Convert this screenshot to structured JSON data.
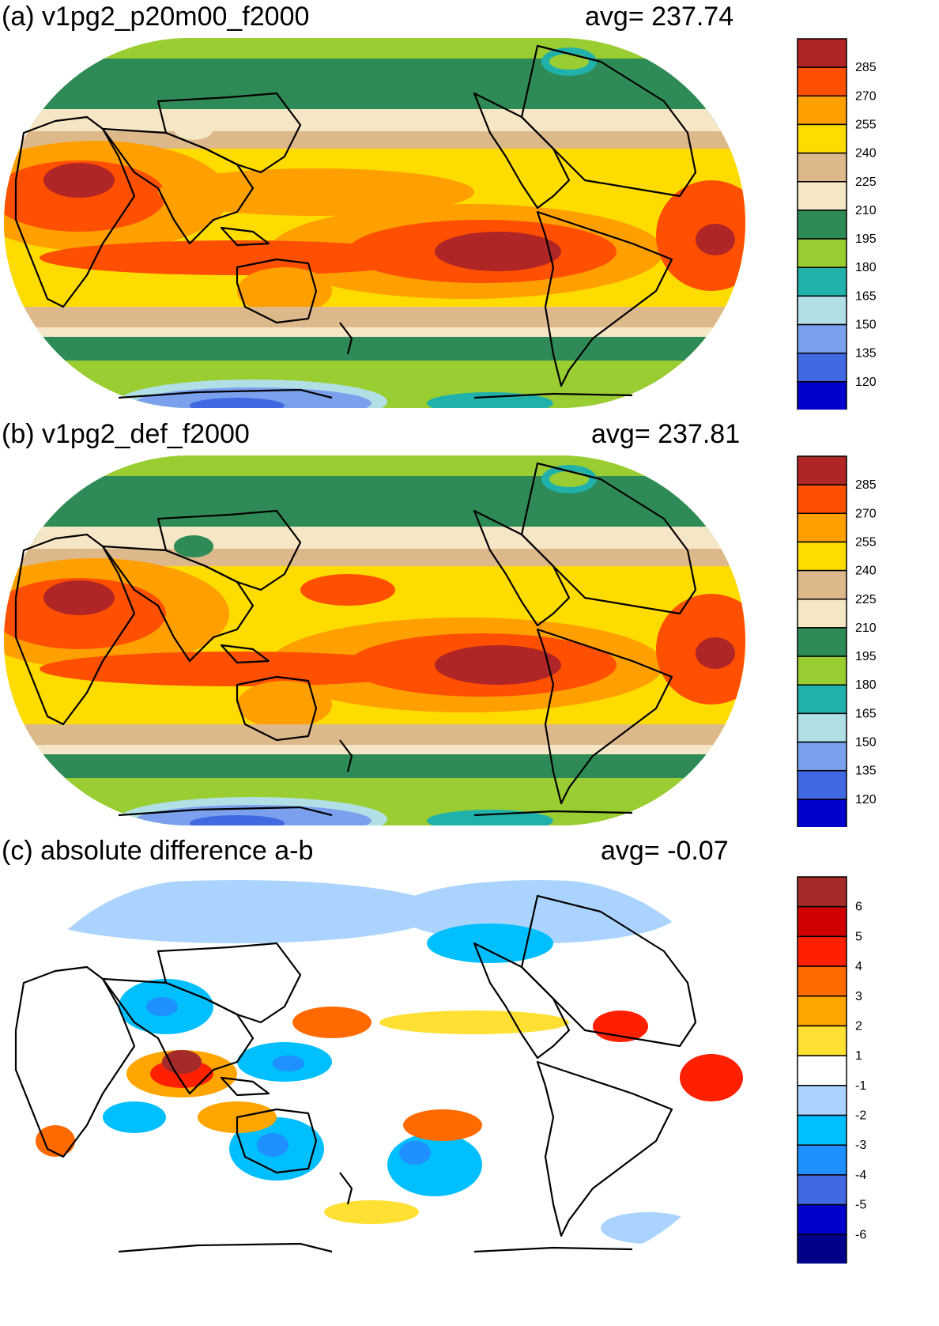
{
  "panels": [
    {
      "id": "a",
      "title": "(a) v1pg2_p20m00_f2000",
      "avg_label": "avg=  237.74",
      "kind": "field",
      "colorbar": {
        "labels": [
          "285",
          "270",
          "255",
          "240",
          "225",
          "210",
          "195",
          "180",
          "165",
          "150",
          "135",
          "120"
        ],
        "colors": [
          "#b02525",
          "#ff4f00",
          "#ff9f00",
          "#ffdc00",
          "#ddb88a",
          "#f5e6c6",
          "#2e8b57",
          "#9acd32",
          "#20b2aa",
          "#b0e0e6",
          "#7ba1ee",
          "#4169e1",
          "#0000cd"
        ]
      }
    },
    {
      "id": "b",
      "title": "(b) v1pg2_def_f2000",
      "avg_label": "avg=  237.81",
      "kind": "field",
      "colorbar": {
        "labels": [
          "285",
          "270",
          "255",
          "240",
          "225",
          "210",
          "195",
          "180",
          "165",
          "150",
          "135",
          "120"
        ],
        "colors": [
          "#b02525",
          "#ff4f00",
          "#ff9f00",
          "#ffdc00",
          "#ddb88a",
          "#f5e6c6",
          "#2e8b57",
          "#9acd32",
          "#20b2aa",
          "#b0e0e6",
          "#7ba1ee",
          "#4169e1",
          "#0000cd"
        ]
      }
    },
    {
      "id": "c",
      "title": "(c) absolute difference a-b",
      "avg_label": "avg=   -0.07",
      "kind": "diff",
      "colorbar": {
        "labels": [
          "6",
          "5",
          "4",
          "3",
          "2",
          "1",
          "-1",
          "-2",
          "-3",
          "-4",
          "-5",
          "-6"
        ],
        "colors": [
          "#a52a2a",
          "#d00000",
          "#ff2000",
          "#ff6a00",
          "#ffa500",
          "#ffe033",
          "#ffffff",
          "#aad4ff",
          "#00bfff",
          "#1e90ff",
          "#4169e1",
          "#0000cd",
          "#00008b"
        ]
      }
    }
  ]
}
